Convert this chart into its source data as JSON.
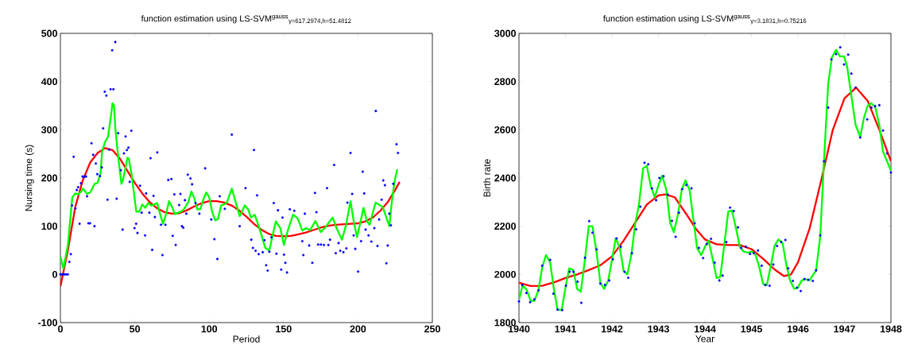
{
  "chart_data": [
    {
      "type": "line",
      "title": "function estimation using LS-SVM$^{gauss}$$_{γ=617.2974,h=51.4812}$",
      "xlabel": "Period",
      "ylabel": "Nursing time (s)",
      "xlim": [
        0,
        250
      ],
      "xticks": [
        0,
        50,
        100,
        150,
        200,
        250
      ],
      "ylim": [
        -100,
        500
      ],
      "yticks": [
        -100,
        0,
        100,
        200,
        300,
        400,
        500
      ],
      "series": [
        {
          "type": "scatter",
          "marker": "circle",
          "color": "#0000ff",
          "x": [
            0,
            1,
            2,
            3,
            4,
            5,
            6,
            7,
            7.8,
            8.9,
            10.1,
            11,
            11.9,
            12.9,
            13.8,
            14.9,
            16.3,
            17.2,
            17.9,
            18.8,
            19.9,
            20.9,
            22,
            22.9,
            23.8,
            24.8,
            26.6,
            27.8,
            28.7,
            29.8,
            30.9,
            31.7,
            32.8,
            33.7,
            34.8,
            35.6,
            36.9,
            37.8,
            38.8,
            40.6,
            41.8,
            42.7,
            43.8,
            44.7,
            45.7,
            46.6,
            47.7,
            49.8,
            50.9,
            51.8,
            53.5,
            54.6,
            56.9,
            57.6,
            59.8,
            60.6,
            61.7,
            62.6,
            63.5,
            65.1,
            67.6,
            68.6,
            70.6,
            72.5,
            74.6,
            75.5,
            76.6,
            77.5,
            79.8,
            80.7,
            81.7,
            82.6,
            83.7,
            84.6,
            85.6,
            87.4,
            88.5,
            90.8,
            93.4,
            97.3,
            101.4,
            103.5,
            105.5,
            107.1,
            110.5,
            115.2,
            120.5,
            124.4,
            128.3,
            129.4,
            130.1,
            131.2,
            132.2,
            133.3,
            136,
            137.2,
            138.3,
            139.3,
            140.4,
            141.8,
            143.4,
            145.2,
            146.2,
            148.4,
            149.3,
            150.3,
            151.2,
            152.3,
            154.2,
            157.2,
            162.6,
            163.3,
            164.3,
            167.2,
            169.3,
            171.1,
            172.1,
            173.2,
            175.1,
            177.1,
            179.2,
            180.1,
            181.2,
            184,
            185.1,
            187,
            188.1,
            190.2,
            192.2,
            192.9,
            195,
            196.1,
            197.1,
            198.2,
            200.1,
            202.1,
            203.2,
            204.2,
            205.1,
            207.1,
            209,
            211,
            212,
            213.1,
            214.2,
            215.9,
            217,
            218.1,
            219.1,
            220,
            221.1,
            222.1,
            223.7,
            225.9,
            226.9
          ],
          "values": [
            0,
            0,
            0,
            0,
            0,
            0,
            26,
            42,
            143,
            244,
            137,
            175,
            181,
            105,
            189,
            203,
            203,
            203,
            162,
            106,
            106,
            272,
            248,
            100,
            230,
            208,
            204,
            222,
            303,
            379,
            371,
            155,
            259,
            384,
            465,
            384,
            482,
            157,
            293,
            216,
            93,
            251,
            286,
            258,
            263,
            192,
            298,
            96,
            105,
            86,
            184,
            128,
            81,
            168,
            128,
            241,
            51,
            163,
            119,
            253,
            103,
            40,
            103,
            196,
            198,
            80,
            166,
            61,
            144,
            167,
            100,
            97,
            154,
            126,
            207,
            199,
            187,
            148,
            126,
            220,
            114,
            73,
            32,
            162,
            136,
            290,
            100,
            179,
            72,
            55,
            258,
            49,
            164,
            42,
            46,
            71,
            19,
            8,
            47,
            77,
            148,
            43,
            133,
            10,
            118,
            41,
            24,
            4,
            135,
            132,
            69,
            40,
            126,
            60,
            24,
            169,
            129,
            62,
            62,
            61,
            179,
            61,
            72,
            227,
            44,
            65,
            49,
            46,
            54,
            149,
            252,
            167,
            81,
            53,
            6,
            69,
            213,
            168,
            93,
            81,
            68,
            96,
            339,
            59,
            114,
            155,
            195,
            185,
            23,
            60,
            126,
            102,
            188,
            270,
            252
          ]
        },
        {
          "marker": "none",
          "color": "#ff0000",
          "x": [
            0,
            5,
            10,
            15,
            20,
            25,
            30,
            35,
            40,
            45,
            50,
            55,
            60,
            65,
            70,
            75,
            80,
            85,
            90,
            95,
            100,
            105,
            110,
            115,
            120,
            125,
            130,
            135,
            140,
            145,
            150,
            155,
            160,
            165,
            170,
            175,
            180,
            185,
            190,
            195,
            200,
            205,
            210,
            215,
            220,
            225,
            228
          ],
          "values": [
            -25,
            50,
            140,
            195,
            232,
            252,
            262,
            258,
            240,
            215,
            190,
            168,
            150,
            137,
            129,
            126,
            127,
            133,
            141,
            148,
            152,
            152,
            149,
            143,
            133,
            120,
            105,
            93,
            84,
            80,
            79,
            80,
            83,
            87,
            92,
            97,
            101,
            103,
            104,
            105,
            106,
            110,
            118,
            132,
            150,
            175,
            192
          ]
        },
        {
          "marker": "none",
          "color": "#00ff00",
          "x": [
            0,
            2,
            5,
            8,
            10,
            12,
            14,
            15,
            17,
            18,
            20,
            23,
            25,
            27,
            28,
            30,
            32,
            34,
            35,
            36,
            37,
            39,
            41,
            42,
            44,
            45,
            46,
            48,
            50,
            51,
            53,
            55,
            57,
            59,
            61,
            63,
            65,
            67,
            69,
            71,
            73,
            75,
            77,
            79,
            81,
            83,
            86,
            88,
            90,
            92,
            94,
            96,
            98,
            100,
            102,
            104,
            106,
            108,
            110,
            112,
            115.2,
            120.5,
            124,
            126.2,
            128,
            130.6,
            133.3,
            137.7,
            140.4,
            144.8,
            147.8,
            150.2,
            152.8,
            156.4,
            159.5,
            162.6,
            165.2,
            167.9,
            171.4,
            175,
            177.6,
            183,
            185.6,
            189.2,
            191.8,
            195,
            197.1,
            199.4,
            201.6,
            203.7,
            206,
            207.8,
            211.8,
            216.6,
            219.3,
            221.1,
            222.8,
            224.6,
            226.4
          ],
          "values": [
            37,
            12,
            60,
            160,
            168,
            166,
            172,
            178,
            171,
            167,
            170,
            188,
            190,
            210,
            255,
            275,
            285,
            330,
            355,
            350,
            300,
            240,
            188,
            195,
            225,
            242,
            240,
            205,
            155,
            130,
            130,
            145,
            138,
            148,
            143,
            145,
            148,
            125,
            105,
            125,
            152,
            140,
            125,
            128,
            130,
            135,
            150,
            172,
            158,
            135,
            135,
            155,
            170,
            160,
            130,
            112,
            115,
            143,
            145,
            150,
            178,
            121,
            143,
            135,
            118,
            124,
            100,
            55,
            50,
            110,
            96,
            61,
            91,
            124,
            116,
            91,
            96,
            92,
            111,
            88,
            96,
            118,
            96,
            72,
            100,
            152,
            111,
            77,
            108,
            138,
            111,
            103,
            149,
            140,
            116,
            100,
            152,
            193,
            218
          ]
        }
      ]
    },
    {
      "type": "line",
      "title": "function estimation using LS-SVM$^{gauss}$$_{γ=3.1831,h=0.75216}$",
      "xlabel": "Year",
      "ylabel": "Birth rate",
      "xlim": [
        1940,
        1948
      ],
      "xticks": [
        1940,
        1941,
        1942,
        1943,
        1944,
        1945,
        1946,
        1947,
        1948
      ],
      "ylim": [
        1800,
        3000
      ],
      "yticks": [
        1800,
        2000,
        2200,
        2400,
        2600,
        2800,
        3000
      ],
      "series": [
        {
          "type": "scatter",
          "marker": "circle",
          "color": "#0000ff",
          "x": [
            1940.0,
            1940.07,
            1940.16,
            1940.24,
            1940.33,
            1940.42,
            1940.5,
            1940.67,
            1940.74,
            1940.83,
            1940.93,
            1941.01,
            1941.09,
            1941.17,
            1941.26,
            1941.34,
            1941.42,
            1941.51,
            1941.58,
            1941.67,
            1941.75,
            1941.85,
            1941.94,
            1942.02,
            1942.1,
            1942.19,
            1942.27,
            1942.35,
            1942.43,
            1942.52,
            1942.61,
            1942.7,
            1942.78,
            1942.86,
            1942.95,
            1943.02,
            1943.11,
            1943.2,
            1943.29,
            1943.37,
            1943.44,
            1943.51,
            1943.6,
            1943.71,
            1943.78,
            1943.87,
            1943.96,
            1944.04,
            1944.13,
            1944.21,
            1944.31,
            1944.38,
            1944.46,
            1944.54,
            1944.62,
            1944.71,
            1944.78,
            1944.88,
            1944.97,
            1945.05,
            1945.14,
            1945.22,
            1945.3,
            1945.39,
            1945.47,
            1945.55,
            1945.64,
            1945.73,
            1945.79,
            1945.89,
            1945.98,
            1946.06,
            1946.14,
            1946.22,
            1946.32,
            1946.39,
            1946.48,
            1946.56,
            1946.65,
            1946.72,
            1946.82,
            1946.91,
            1946.99,
            1947.08,
            1947.15,
            1947.24,
            1947.34,
            1947.49,
            1947.58,
            1947.66,
            1947.75,
            1947.83,
            1947.92,
            1948.0
          ],
          "values": [
            1888,
            1956,
            1923,
            1885,
            1896,
            1934,
            2036,
            2060,
            1920,
            1854,
            1852,
            1953,
            2011,
            2011,
            1970,
            1882,
            2069,
            2221,
            2173,
            2104,
            1962,
            1956,
            1975,
            2063,
            2149,
            2115,
            2011,
            1986,
            2088,
            2187,
            2281,
            2463,
            2457,
            2357,
            2308,
            2400,
            2407,
            2331,
            2222,
            2156,
            2256,
            2354,
            2371,
            2357,
            2212,
            2110,
            2068,
            2126,
            2148,
            2049,
            1975,
            1995,
            2134,
            2277,
            2263,
            2195,
            2110,
            2115,
            2085,
            2088,
            2099,
            2036,
            1956,
            1953,
            2041,
            2118,
            2134,
            2143,
            2025,
            1973,
            1945,
            1931,
            1981,
            1978,
            1973,
            2017,
            2162,
            2469,
            2692,
            2892,
            2914,
            2942,
            2871,
            2912,
            2833,
            2775,
            2568,
            2643,
            2692,
            2698,
            2702,
            2597,
            2502,
            2423
          ]
        },
        {
          "marker": "none",
          "color": "#ff0000",
          "x": [
            1940,
            1940.25,
            1940.5,
            1940.75,
            1941,
            1941.25,
            1941.5,
            1941.75,
            1942,
            1942.25,
            1942.5,
            1942.75,
            1943,
            1943.15,
            1943.35,
            1943.6,
            1943.8,
            1944,
            1944.25,
            1944.5,
            1944.75,
            1945,
            1945.25,
            1945.5,
            1945.7,
            1945.85,
            1946,
            1946.25,
            1946.5,
            1946.75,
            1947,
            1947.25,
            1947.5,
            1947.75,
            1948
          ],
          "values": [
            1965,
            1952,
            1953,
            1967,
            1985,
            2000,
            2018,
            2038,
            2075,
            2140,
            2215,
            2290,
            2328,
            2332,
            2320,
            2250,
            2190,
            2145,
            2125,
            2122,
            2122,
            2105,
            2065,
            2020,
            1993,
            2000,
            2050,
            2190,
            2390,
            2600,
            2730,
            2775,
            2720,
            2600,
            2470
          ]
        },
        {
          "marker": "none",
          "color": "#00ff00",
          "x": [
            1940,
            1940.08,
            1940.17,
            1940.25,
            1940.33,
            1940.42,
            1940.5,
            1940.58,
            1940.67,
            1940.75,
            1940.83,
            1940.92,
            1941,
            1941.08,
            1941.17,
            1941.25,
            1941.33,
            1941.42,
            1941.5,
            1941.58,
            1941.67,
            1941.75,
            1941.83,
            1941.92,
            1942,
            1942.08,
            1942.17,
            1942.25,
            1942.33,
            1942.42,
            1942.5,
            1942.58,
            1942.67,
            1942.75,
            1942.83,
            1942.92,
            1943,
            1943.08,
            1943.17,
            1943.25,
            1943.33,
            1943.42,
            1943.5,
            1943.58,
            1943.67,
            1943.75,
            1943.83,
            1943.92,
            1944,
            1944.08,
            1944.17,
            1944.25,
            1944.33,
            1944.42,
            1944.5,
            1944.58,
            1944.67,
            1944.75,
            1944.83,
            1944.92,
            1945,
            1945.08,
            1945.17,
            1945.25,
            1945.33,
            1945.42,
            1945.5,
            1945.58,
            1945.67,
            1945.75,
            1945.83,
            1945.92,
            1946,
            1946.08,
            1946.17,
            1946.25,
            1946.33,
            1946.39,
            1946.48,
            1946.56,
            1946.65,
            1946.73,
            1946.82,
            1946.9,
            1946.99,
            1947.06,
            1947.15,
            1947.24,
            1947.34,
            1947.42,
            1947.5,
            1947.58,
            1947.66,
            1947.75,
            1947.83,
            1948
          ],
          "values": [
            1895,
            1955,
            1935,
            1890,
            1890,
            1935,
            2030,
            2080,
            2050,
            1940,
            1853,
            1853,
            1945,
            2025,
            2018,
            1940,
            1928,
            2065,
            2200,
            2200,
            2090,
            1965,
            1940,
            1975,
            2060,
            2150,
            2110,
            2015,
            2000,
            2085,
            2210,
            2290,
            2440,
            2450,
            2370,
            2320,
            2370,
            2410,
            2350,
            2215,
            2175,
            2250,
            2350,
            2390,
            2350,
            2230,
            2110,
            2080,
            2115,
            2140,
            2060,
            1985,
            1990,
            2130,
            2260,
            2265,
            2190,
            2115,
            2095,
            2090,
            2095,
            2085,
            2030,
            1960,
            1955,
            2040,
            2120,
            2145,
            2130,
            2040,
            1975,
            1940,
            1945,
            1975,
            1980,
            1975,
            2000,
            2015,
            2160,
            2470,
            2790,
            2900,
            2932,
            2905,
            2905,
            2860,
            2740,
            2620,
            2570,
            2650,
            2700,
            2710,
            2695,
            2620,
            2510,
            2430
          ]
        }
      ]
    }
  ]
}
